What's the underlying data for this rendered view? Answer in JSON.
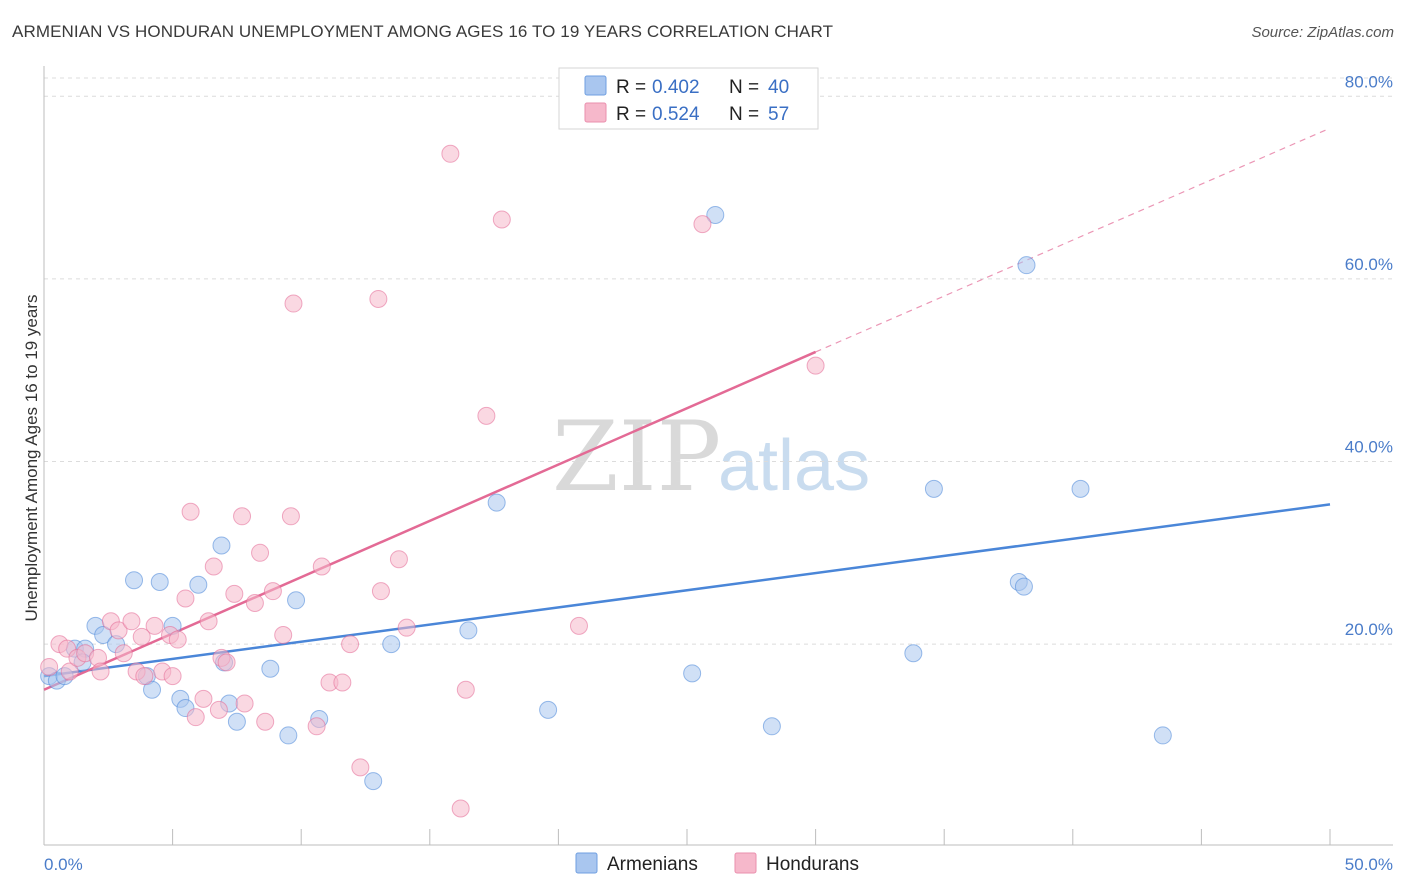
{
  "title": "ARMENIAN VS HONDURAN UNEMPLOYMENT AMONG AGES 16 TO 19 YEARS CORRELATION CHART",
  "source": "Source: ZipAtlas.com",
  "watermark": {
    "zip": "ZIP",
    "atlas": "atlas"
  },
  "chart_data": {
    "type": "scatter",
    "xlabel": "",
    "ylabel": "Unemployment Among Ages 16 to 19 years",
    "xlim": [
      0,
      50
    ],
    "ylim": [
      -2,
      82
    ],
    "x_tick_labels": {
      "left": "0.0%",
      "right": "50.0%"
    },
    "y_ticks": [
      {
        "value": 20,
        "label": "20.0%"
      },
      {
        "value": 40,
        "label": "40.0%"
      },
      {
        "value": 60,
        "label": "60.0%"
      },
      {
        "value": 80,
        "label": "80.0%"
      }
    ],
    "legend": {
      "r_label": "R =",
      "n_label": "N =",
      "entries": [
        {
          "name": "Armenians",
          "r": "0.402",
          "n": "40"
        },
        {
          "name": "Hondurans",
          "r": "0.524",
          "n": "57"
        }
      ]
    },
    "series": [
      {
        "name": "Armenians",
        "color": "#4a86d8",
        "fill": "#a9c6ef",
        "trend": {
          "x0": 0,
          "y0": 16.5,
          "x1": 50,
          "y1": 35.3,
          "dashed_to": null
        },
        "points": [
          [
            0.2,
            16.5
          ],
          [
            0.5,
            16.0
          ],
          [
            0.8,
            16.5
          ],
          [
            1.2,
            19.5
          ],
          [
            1.6,
            19.5
          ],
          [
            2.0,
            22.0
          ],
          [
            2.3,
            21.0
          ],
          [
            2.8,
            20.0
          ],
          [
            3.5,
            27.0
          ],
          [
            4.0,
            16.5
          ],
          [
            4.5,
            26.8
          ],
          [
            5.0,
            22.0
          ],
          [
            4.2,
            15.0
          ],
          [
            5.3,
            14.0
          ],
          [
            5.5,
            13.0
          ],
          [
            6.0,
            26.5
          ],
          [
            6.9,
            30.8
          ],
          [
            7.0,
            18.0
          ],
          [
            7.2,
            13.5
          ],
          [
            7.5,
            11.5
          ],
          [
            8.8,
            17.3
          ],
          [
            9.5,
            10.0
          ],
          [
            9.8,
            24.8
          ],
          [
            10.7,
            11.8
          ],
          [
            12.8,
            5.0
          ],
          [
            13.5,
            20.0
          ],
          [
            16.5,
            21.5
          ],
          [
            17.6,
            35.5
          ],
          [
            19.6,
            12.8
          ],
          [
            25.2,
            16.8
          ],
          [
            26.1,
            67.0
          ],
          [
            28.3,
            11.0
          ],
          [
            33.8,
            19.0
          ],
          [
            34.6,
            37.0
          ],
          [
            37.9,
            26.8
          ],
          [
            38.1,
            26.3
          ],
          [
            38.2,
            61.5
          ],
          [
            40.3,
            37.0
          ],
          [
            43.5,
            10.0
          ],
          [
            1.5,
            18.0
          ]
        ]
      },
      {
        "name": "Hondurans",
        "color": "#e36a95",
        "fill": "#f6b8cb",
        "trend": {
          "x0": 0,
          "y0": 15.0,
          "x1": 30,
          "y1": 52.0,
          "dashed_to": {
            "x": 50,
            "y": 76.5
          }
        },
        "points": [
          [
            0.2,
            17.5
          ],
          [
            0.6,
            20.0
          ],
          [
            0.9,
            19.5
          ],
          [
            1.0,
            17.0
          ],
          [
            1.3,
            18.5
          ],
          [
            1.6,
            19.0
          ],
          [
            2.1,
            18.5
          ],
          [
            2.2,
            17.0
          ],
          [
            2.6,
            22.5
          ],
          [
            2.9,
            21.5
          ],
          [
            3.1,
            19.0
          ],
          [
            3.4,
            22.5
          ],
          [
            3.6,
            17.0
          ],
          [
            3.9,
            16.5
          ],
          [
            4.3,
            22.0
          ],
          [
            4.6,
            17.0
          ],
          [
            4.9,
            21.0
          ],
          [
            5.2,
            20.5
          ],
          [
            5.5,
            25.0
          ],
          [
            5.7,
            34.5
          ],
          [
            5.9,
            12.0
          ],
          [
            6.2,
            14.0
          ],
          [
            6.4,
            22.5
          ],
          [
            6.6,
            28.5
          ],
          [
            6.9,
            18.5
          ],
          [
            7.1,
            18.0
          ],
          [
            7.4,
            25.5
          ],
          [
            7.7,
            34.0
          ],
          [
            7.8,
            13.5
          ],
          [
            8.2,
            24.5
          ],
          [
            8.4,
            30.0
          ],
          [
            8.6,
            11.5
          ],
          [
            8.9,
            25.8
          ],
          [
            9.3,
            21.0
          ],
          [
            9.6,
            34.0
          ],
          [
            9.7,
            57.3
          ],
          [
            10.6,
            11.0
          ],
          [
            10.8,
            28.5
          ],
          [
            11.1,
            15.8
          ],
          [
            11.6,
            15.8
          ],
          [
            11.9,
            20.0
          ],
          [
            12.3,
            6.5
          ],
          [
            13.0,
            57.8
          ],
          [
            13.1,
            25.8
          ],
          [
            13.8,
            29.3
          ],
          [
            14.1,
            21.8
          ],
          [
            15.8,
            73.7
          ],
          [
            16.2,
            2.0
          ],
          [
            16.4,
            15.0
          ],
          [
            17.2,
            45.0
          ],
          [
            17.8,
            66.5
          ],
          [
            20.8,
            22.0
          ],
          [
            25.6,
            66.0
          ],
          [
            30.0,
            50.5
          ],
          [
            5.0,
            16.5
          ],
          [
            3.8,
            20.8
          ],
          [
            6.8,
            12.8
          ]
        ]
      }
    ]
  }
}
